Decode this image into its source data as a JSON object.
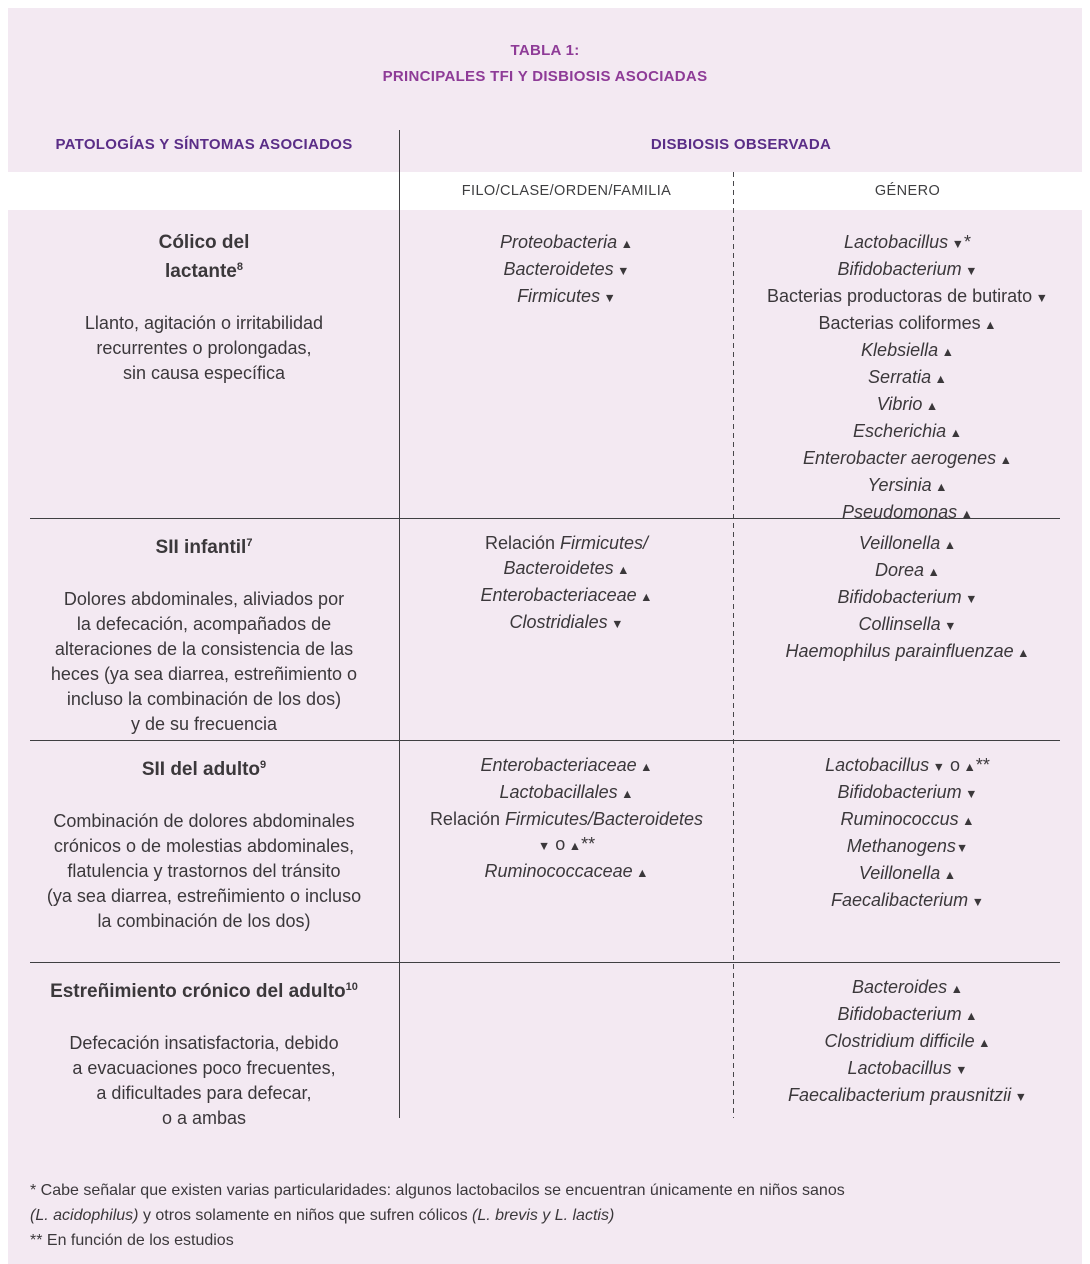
{
  "colors": {
    "panel_background": "#f3e9f2",
    "subheader_band": "#ffffff",
    "title_purple": "#8e3b97",
    "header_purple": "#5a2d87",
    "body_text": "#3b383b",
    "rule_lines": "#3f3f42"
  },
  "title": {
    "line1": "TABLA 1:",
    "line2": "PRINCIPALES TFI Y DISBIOSIS ASOCIADAS"
  },
  "headers": {
    "pathologies": "PATOLOGÍAS Y SÍNTOMAS ASOCIADOS",
    "dysbiosis": "DISBIOSIS OBSERVADA",
    "subcol_family": "FILO/CLASE/ORDEN/FAMILIA",
    "subcol_genus": "GÉNERO"
  },
  "rows": [
    {
      "pathology": {
        "title_lines": [
          [
            {
              "t": "Cólico del",
              "s": "r"
            }
          ],
          [
            {
              "t": "lactante",
              "s": "r"
            },
            {
              "t": "8",
              "s": "sup"
            }
          ]
        ],
        "description": "Llanto, agitación o irritabilidad\nrecurrentes o prolongadas,\nsin causa específica"
      },
      "family_lines": [
        [
          {
            "t": "Proteobacteria",
            "s": "i"
          },
          {
            "t": " ▲",
            "s": "m"
          }
        ],
        [
          {
            "t": "Bacteroidetes",
            "s": "i"
          },
          {
            "t": " ▼",
            "s": "m"
          }
        ],
        [
          {
            "t": "Firmicutes",
            "s": "i"
          },
          {
            "t": " ▼",
            "s": "m"
          }
        ]
      ],
      "genus_lines": [
        [
          {
            "t": "Lactobacillus",
            "s": "i"
          },
          {
            "t": " ▼",
            "s": "m"
          },
          {
            "t": "*",
            "s": "r"
          }
        ],
        [
          {
            "t": "Bifidobacterium",
            "s": "i"
          },
          {
            "t": " ▼",
            "s": "m"
          }
        ],
        [
          {
            "t": "Bacterias productoras de butirato",
            "s": "r"
          },
          {
            "t": " ▼",
            "s": "m"
          }
        ],
        [
          {
            "t": "Bacterias coliformes",
            "s": "r"
          },
          {
            "t": " ▲",
            "s": "m"
          }
        ],
        [
          {
            "t": "Klebsiella",
            "s": "i"
          },
          {
            "t": " ▲",
            "s": "m"
          }
        ],
        [
          {
            "t": "Serratia",
            "s": "i"
          },
          {
            "t": " ▲",
            "s": "m"
          }
        ],
        [
          {
            "t": "Vibrio",
            "s": "i"
          },
          {
            "t": " ▲",
            "s": "m"
          }
        ],
        [
          {
            "t": "Escherichia",
            "s": "i"
          },
          {
            "t": " ▲",
            "s": "m"
          }
        ],
        [
          {
            "t": "Enterobacter aerogenes",
            "s": "i"
          },
          {
            "t": " ▲",
            "s": "m"
          }
        ],
        [
          {
            "t": "Yersinia",
            "s": "i"
          },
          {
            "t": " ▲",
            "s": "m"
          }
        ],
        [
          {
            "t": "Pseudomonas",
            "s": "i"
          },
          {
            "t": " ▲",
            "s": "m"
          }
        ]
      ]
    },
    {
      "pathology": {
        "title_lines": [
          [
            {
              "t": "SII infantil",
              "s": "r"
            },
            {
              "t": "7",
              "s": "sup"
            }
          ]
        ],
        "description": "Dolores abdominales, aliviados por\nla defecación, acompañados de\nalteraciones de la consistencia de las\nheces (ya sea diarrea, estreñimiento o\nincluso la combinación de los dos)\ny de su frecuencia"
      },
      "family_lines": [
        [
          {
            "t": "Relación ",
            "s": "r"
          },
          {
            "t": "Firmicutes/",
            "s": "i"
          }
        ],
        [
          {
            "t": "Bacteroidetes",
            "s": "i"
          },
          {
            "t": " ▲",
            "s": "m"
          }
        ],
        [
          {
            "t": "Enterobacteriaceae",
            "s": "i"
          },
          {
            "t": " ▲",
            "s": "m"
          }
        ],
        [
          {
            "t": "Clostridiales",
            "s": "i"
          },
          {
            "t": " ▼",
            "s": "m"
          }
        ]
      ],
      "genus_lines": [
        [
          {
            "t": "Veillonella",
            "s": "i"
          },
          {
            "t": " ▲",
            "s": "m"
          }
        ],
        [
          {
            "t": "Dorea",
            "s": "i"
          },
          {
            "t": " ▲",
            "s": "m"
          }
        ],
        [
          {
            "t": "Bifidobacterium",
            "s": "i"
          },
          {
            "t": " ▼",
            "s": "m"
          }
        ],
        [
          {
            "t": "Collinsella",
            "s": "i"
          },
          {
            "t": " ▼",
            "s": "m"
          }
        ],
        [
          {
            "t": "Haemophilus parainfluenzae",
            "s": "i"
          },
          {
            "t": " ▲",
            "s": "m"
          }
        ]
      ]
    },
    {
      "pathology": {
        "title_lines": [
          [
            {
              "t": "SII del adulto",
              "s": "r"
            },
            {
              "t": "9",
              "s": "sup"
            }
          ]
        ],
        "description": "Combinación de dolores abdominales\ncrónicos o de molestias abdominales,\nflatulencia y trastornos del tránsito\n(ya sea diarrea, estreñimiento o incluso\nla combinación de los dos)"
      },
      "family_lines": [
        [
          {
            "t": "Enterobacteriaceae",
            "s": "i"
          },
          {
            "t": " ▲",
            "s": "m"
          }
        ],
        [
          {
            "t": "Lactobacillales",
            "s": "i"
          },
          {
            "t": " ▲",
            "s": "m"
          }
        ],
        [
          {
            "t": "Relación ",
            "s": "r"
          },
          {
            "t": "Firmicutes/Bacteroidetes",
            "s": "i"
          }
        ],
        [
          {
            "t": "▼",
            "s": "m"
          },
          {
            "t": " o",
            "s": "r"
          },
          {
            "t": " ▲",
            "s": "m"
          },
          {
            "t": "**",
            "s": "r"
          }
        ],
        [
          {
            "t": "Ruminococcaceae",
            "s": "i"
          },
          {
            "t": " ▲",
            "s": "m"
          }
        ]
      ],
      "genus_lines": [
        [
          {
            "t": "Lactobacillus",
            "s": "i"
          },
          {
            "t": " ▼",
            "s": "m"
          },
          {
            "t": " o",
            "s": "r"
          },
          {
            "t": " ▲",
            "s": "m"
          },
          {
            "t": "**",
            "s": "r"
          }
        ],
        [
          {
            "t": "Bifidobacterium",
            "s": "i"
          },
          {
            "t": " ▼",
            "s": "m"
          }
        ],
        [
          {
            "t": "Ruminococcus",
            "s": "i"
          },
          {
            "t": " ▲",
            "s": "m"
          }
        ],
        [
          {
            "t": "Methanogens",
            "s": "i"
          },
          {
            "t": "▼",
            "s": "m"
          }
        ],
        [
          {
            "t": "Veillonella",
            "s": "i"
          },
          {
            "t": " ▲",
            "s": "m"
          }
        ],
        [
          {
            "t": "Faecalibacterium",
            "s": "i"
          },
          {
            "t": " ▼",
            "s": "m"
          }
        ]
      ]
    },
    {
      "pathology": {
        "title_lines": [
          [
            {
              "t": "Estreñimiento crónico del adulto",
              "s": "r"
            },
            {
              "t": "10",
              "s": "sup"
            }
          ]
        ],
        "description": "Defecación insatisfactoria, debido\na evacuaciones poco frecuentes,\na dificultades para defecar,\no a ambas"
      },
      "family_lines": [],
      "genus_lines": [
        [
          {
            "t": "Bacteroides",
            "s": "i"
          },
          {
            "t": " ▲",
            "s": "m"
          }
        ],
        [
          {
            "t": "Bifidobacterium",
            "s": "i"
          },
          {
            "t": " ▲",
            "s": "m"
          }
        ],
        [
          {
            "t": "Clostridium difficile",
            "s": "i"
          },
          {
            "t": " ▲",
            "s": "m"
          }
        ],
        [
          {
            "t": "Lactobacillus",
            "s": "i"
          },
          {
            "t": " ▼",
            "s": "m"
          }
        ],
        [
          {
            "t": "Faecalibacterium prausnitzii",
            "s": "i"
          },
          {
            "t": " ▼",
            "s": "m"
          }
        ]
      ]
    }
  ],
  "footnotes": [
    [
      {
        "t": "* Cabe señalar que existen varias particularidades: algunos lactobacilos se encuentran únicamente en niños sanos",
        "s": "r"
      }
    ],
    [
      {
        "t": "(L. acidophilus)",
        "s": "i"
      },
      {
        "t": " y otros solamente en niños que sufren cólicos ",
        "s": "r"
      },
      {
        "t": "(L. brevis y L. lactis)",
        "s": "i"
      }
    ],
    [
      {
        "t": "** En función de los estudios",
        "s": "r"
      }
    ]
  ]
}
